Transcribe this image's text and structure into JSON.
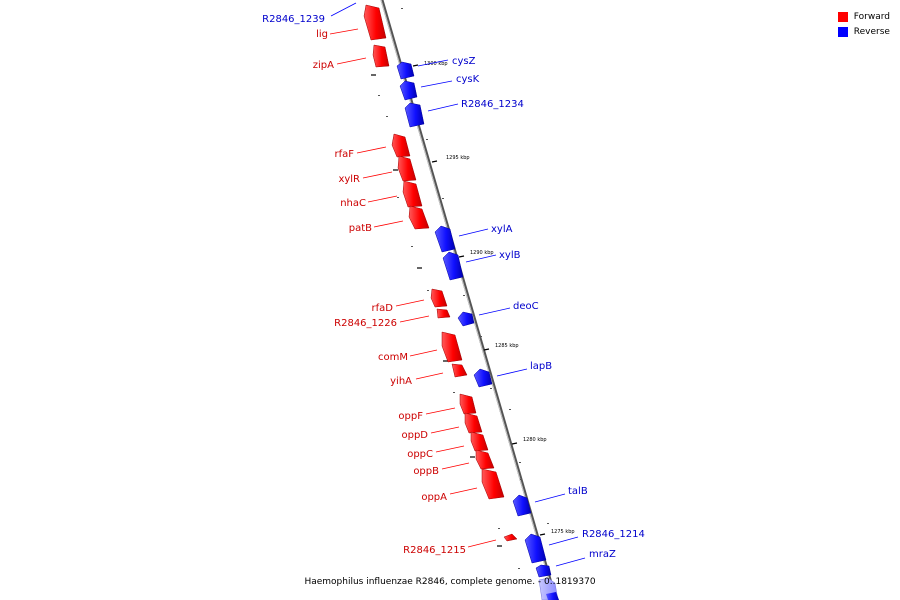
{
  "legend": {
    "forward_label": "Forward",
    "reverse_label": "Reverse",
    "forward_color": "#ff0000",
    "reverse_color": "#0000ff"
  },
  "caption": "Haemophilus influenzae R2846, complete genome. - 0..1819370",
  "ticks": [
    "1300 kbp",
    "1295 kbp",
    "1290 kbp",
    "1285 kbp",
    "1280 kbp",
    "1275 kbp"
  ],
  "genes": [
    {
      "name": "R2846_1239",
      "strand": "reverse"
    },
    {
      "name": "lig",
      "strand": "forward"
    },
    {
      "name": "zipA",
      "strand": "forward"
    },
    {
      "name": "cysZ",
      "strand": "reverse"
    },
    {
      "name": "cysK",
      "strand": "reverse"
    },
    {
      "name": "R2846_1234",
      "strand": "reverse"
    },
    {
      "name": "rfaF",
      "strand": "forward"
    },
    {
      "name": "xylR",
      "strand": "forward"
    },
    {
      "name": "nhaC",
      "strand": "forward"
    },
    {
      "name": "patB",
      "strand": "forward"
    },
    {
      "name": "xylA",
      "strand": "reverse"
    },
    {
      "name": "xylB",
      "strand": "reverse"
    },
    {
      "name": "rfaD",
      "strand": "forward"
    },
    {
      "name": "R2846_1226",
      "strand": "forward"
    },
    {
      "name": "deoC",
      "strand": "reverse"
    },
    {
      "name": "comM",
      "strand": "forward"
    },
    {
      "name": "yihA",
      "strand": "forward"
    },
    {
      "name": "lapB",
      "strand": "reverse"
    },
    {
      "name": "oppF",
      "strand": "forward"
    },
    {
      "name": "oppD",
      "strand": "forward"
    },
    {
      "name": "oppC",
      "strand": "forward"
    },
    {
      "name": "oppB",
      "strand": "forward"
    },
    {
      "name": "oppA",
      "strand": "forward"
    },
    {
      "name": "talB",
      "strand": "reverse"
    },
    {
      "name": "R2846_1215",
      "strand": "forward"
    },
    {
      "name": "R2846_1214",
      "strand": "reverse"
    },
    {
      "name": "mraZ",
      "strand": "reverse"
    }
  ]
}
